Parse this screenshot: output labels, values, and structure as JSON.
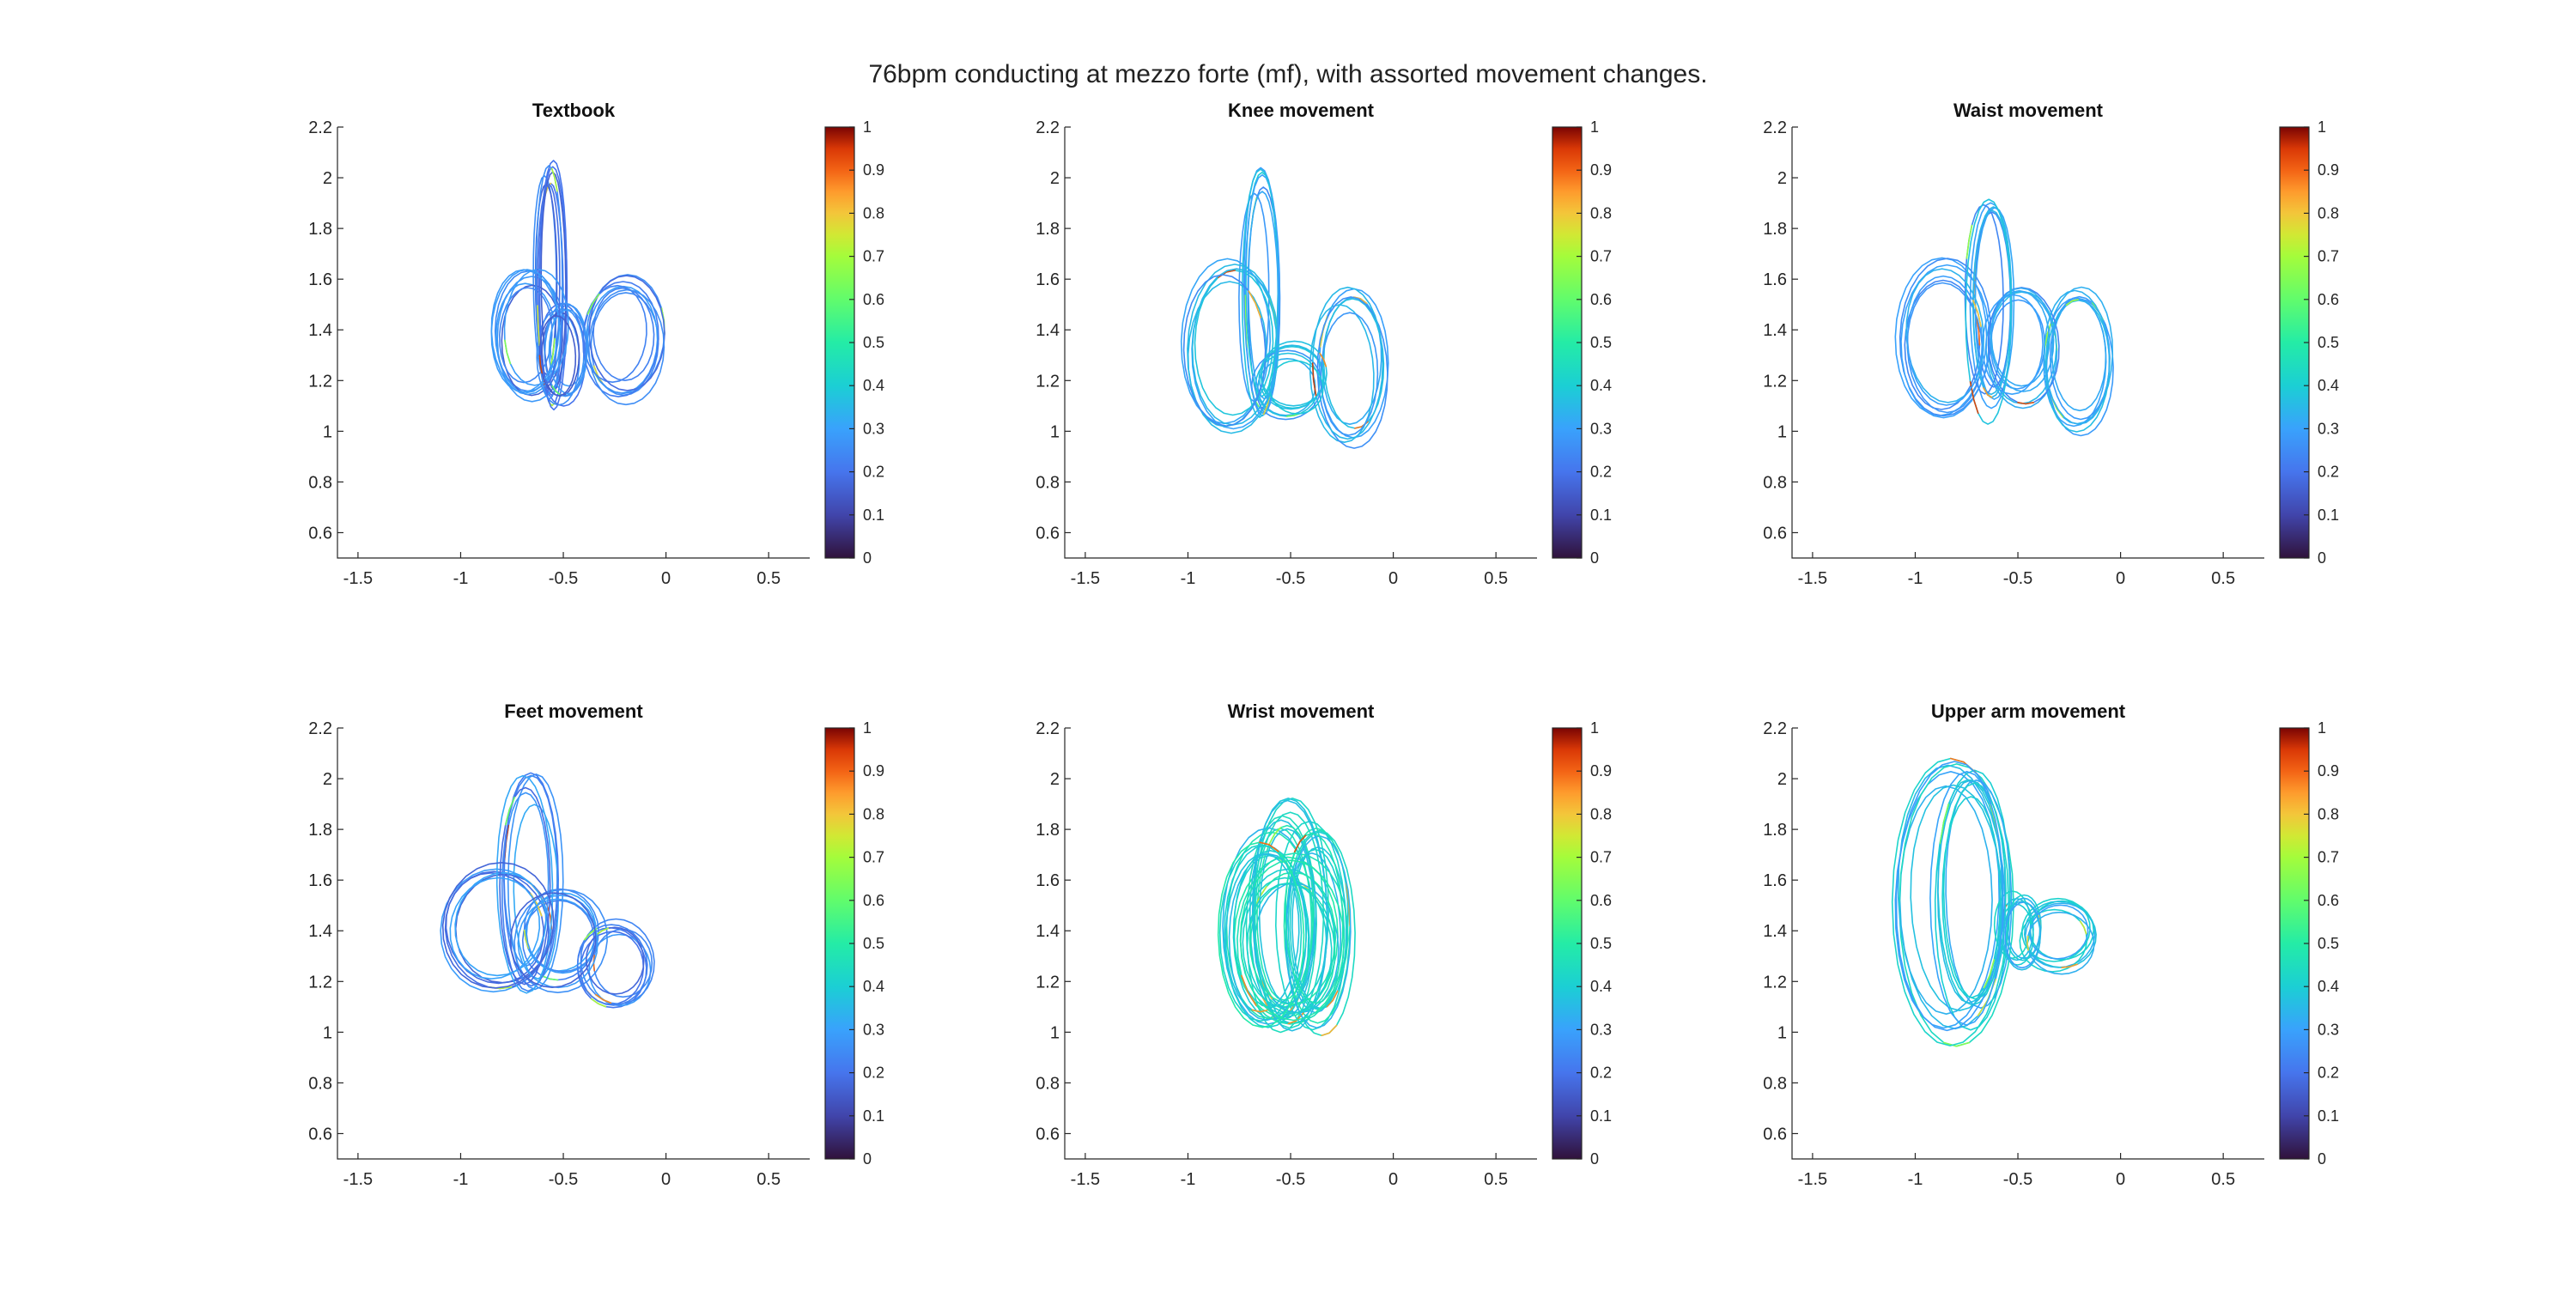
{
  "title": "76bpm conducting at mezzo forte (mf), with assorted movement changes.",
  "chart_data": [
    {
      "type": "line",
      "title": "Textbook",
      "xlim": [
        -1.6,
        0.7
      ],
      "ylim": [
        0.5,
        2.2
      ],
      "xticks": [
        -1.5,
        -1,
        -0.5,
        0,
        0.5
      ],
      "yticks": [
        0.6,
        0.8,
        1,
        1.2,
        1.4,
        1.6,
        1.8,
        2,
        2.2
      ],
      "colorbar": {
        "range": [
          0,
          1
        ],
        "ticks": [
          0,
          0.1,
          0.2,
          0.3,
          0.4,
          0.5,
          0.6,
          0.7,
          0.8,
          0.9,
          1
        ]
      },
      "loops": [
        {
          "cx": -0.56,
          "cy": 1.58,
          "rx": 0.06,
          "ry": 0.43
        },
        {
          "cx": -0.66,
          "cy": 1.38,
          "rx": 0.15,
          "ry": 0.22
        },
        {
          "cx": -0.22,
          "cy": 1.36,
          "rx": 0.17,
          "ry": 0.21
        },
        {
          "cx": -0.5,
          "cy": 1.32,
          "rx": 0.1,
          "ry": 0.18
        }
      ],
      "cycles": 8,
      "color_level": 0.22
    },
    {
      "type": "line",
      "title": "Knee movement",
      "xlim": [
        -1.6,
        0.7
      ],
      "ylim": [
        0.5,
        2.2
      ],
      "xticks": [
        -1.5,
        -1,
        -0.5,
        0,
        0.5
      ],
      "yticks": [
        0.6,
        0.8,
        1,
        1.2,
        1.4,
        1.6,
        1.8,
        2,
        2.2
      ],
      "colorbar": {
        "range": [
          0,
          1
        ],
        "ticks": [
          0,
          0.1,
          0.2,
          0.3,
          0.4,
          0.5,
          0.6,
          0.7,
          0.8,
          0.9,
          1
        ]
      },
      "loops": [
        {
          "cx": -0.66,
          "cy": 1.55,
          "rx": 0.08,
          "ry": 0.45
        },
        {
          "cx": -0.8,
          "cy": 1.33,
          "rx": 0.2,
          "ry": 0.3
        },
        {
          "cx": -0.22,
          "cy": 1.25,
          "rx": 0.16,
          "ry": 0.28
        },
        {
          "cx": -0.5,
          "cy": 1.2,
          "rx": 0.15,
          "ry": 0.12
        }
      ],
      "cycles": 7,
      "color_level": 0.32
    },
    {
      "type": "line",
      "title": "Waist movement",
      "xlim": [
        -1.6,
        0.7
      ],
      "ylim": [
        0.5,
        2.2
      ],
      "xticks": [
        -1.5,
        -1,
        -0.5,
        0,
        0.5
      ],
      "yticks": [
        0.6,
        0.8,
        1,
        1.2,
        1.4,
        1.6,
        1.8,
        2,
        2.2
      ],
      "colorbar": {
        "range": [
          0,
          1
        ],
        "ticks": [
          0,
          0.1,
          0.2,
          0.3,
          0.4,
          0.5,
          0.6,
          0.7,
          0.8,
          0.9,
          1
        ]
      },
      "loops": [
        {
          "cx": -0.64,
          "cy": 1.5,
          "rx": 0.1,
          "ry": 0.4
        },
        {
          "cx": -0.86,
          "cy": 1.35,
          "rx": 0.2,
          "ry": 0.28
        },
        {
          "cx": -0.22,
          "cy": 1.28,
          "rx": 0.15,
          "ry": 0.25
        },
        {
          "cx": -0.5,
          "cy": 1.35,
          "rx": 0.15,
          "ry": 0.2
        }
      ],
      "cycles": 7,
      "color_level": 0.3
    },
    {
      "type": "line",
      "title": "Feet movement",
      "xlim": [
        -1.6,
        0.7
      ],
      "ylim": [
        0.5,
        2.2
      ],
      "xticks": [
        -1.5,
        -1,
        -0.5,
        0,
        0.5
      ],
      "yticks": [
        0.6,
        0.8,
        1,
        1.2,
        1.4,
        1.6,
        1.8,
        2,
        2.2
      ],
      "colorbar": {
        "range": [
          0,
          1
        ],
        "ticks": [
          0,
          0.1,
          0.2,
          0.3,
          0.4,
          0.5,
          0.6,
          0.7,
          0.8,
          0.9,
          1
        ]
      },
      "loops": [
        {
          "cx": -0.66,
          "cy": 1.58,
          "rx": 0.12,
          "ry": 0.38
        },
        {
          "cx": -0.82,
          "cy": 1.4,
          "rx": 0.24,
          "ry": 0.22
        },
        {
          "cx": -0.24,
          "cy": 1.27,
          "rx": 0.16,
          "ry": 0.15
        },
        {
          "cx": -0.52,
          "cy": 1.38,
          "rx": 0.2,
          "ry": 0.18
        }
      ],
      "cycles": 7,
      "color_level": 0.24
    },
    {
      "type": "line",
      "title": "Wrist movement",
      "xlim": [
        -1.6,
        0.7
      ],
      "ylim": [
        0.5,
        2.2
      ],
      "xticks": [
        -1.5,
        -1,
        -0.5,
        0,
        0.5
      ],
      "yticks": [
        0.6,
        0.8,
        1,
        1.2,
        1.4,
        1.6,
        1.8,
        2,
        2.2
      ],
      "colorbar": {
        "range": [
          0,
          1
        ],
        "ticks": [
          0,
          0.1,
          0.2,
          0.3,
          0.4,
          0.5,
          0.6,
          0.7,
          0.8,
          0.9,
          1
        ]
      },
      "loops": [
        {
          "cx": -0.52,
          "cy": 1.45,
          "rx": 0.16,
          "ry": 0.4
        },
        {
          "cx": -0.62,
          "cy": 1.4,
          "rx": 0.2,
          "ry": 0.35
        },
        {
          "cx": -0.38,
          "cy": 1.42,
          "rx": 0.15,
          "ry": 0.36
        },
        {
          "cx": -0.5,
          "cy": 1.35,
          "rx": 0.24,
          "ry": 0.3
        }
      ],
      "cycles": 9,
      "color_level": 0.42
    },
    {
      "type": "line",
      "title": "Upper arm movement",
      "xlim": [
        -1.6,
        0.7
      ],
      "ylim": [
        0.5,
        2.2
      ],
      "xticks": [
        -1.5,
        -1,
        -0.5,
        0,
        0.5
      ],
      "yticks": [
        0.6,
        0.8,
        1,
        1.2,
        1.4,
        1.6,
        1.8,
        2,
        2.2
      ],
      "colorbar": {
        "range": [
          0,
          1
        ],
        "ticks": [
          0,
          0.1,
          0.2,
          0.3,
          0.4,
          0.5,
          0.6,
          0.7,
          0.8,
          0.9,
          1
        ]
      },
      "loops": [
        {
          "cx": -0.82,
          "cy": 1.52,
          "rx": 0.26,
          "ry": 0.52
        },
        {
          "cx": -0.72,
          "cy": 1.55,
          "rx": 0.16,
          "ry": 0.45
        },
        {
          "cx": -0.3,
          "cy": 1.38,
          "rx": 0.16,
          "ry": 0.12
        },
        {
          "cx": -0.5,
          "cy": 1.4,
          "rx": 0.08,
          "ry": 0.12
        }
      ],
      "cycles": 7,
      "color_level": 0.36
    }
  ]
}
